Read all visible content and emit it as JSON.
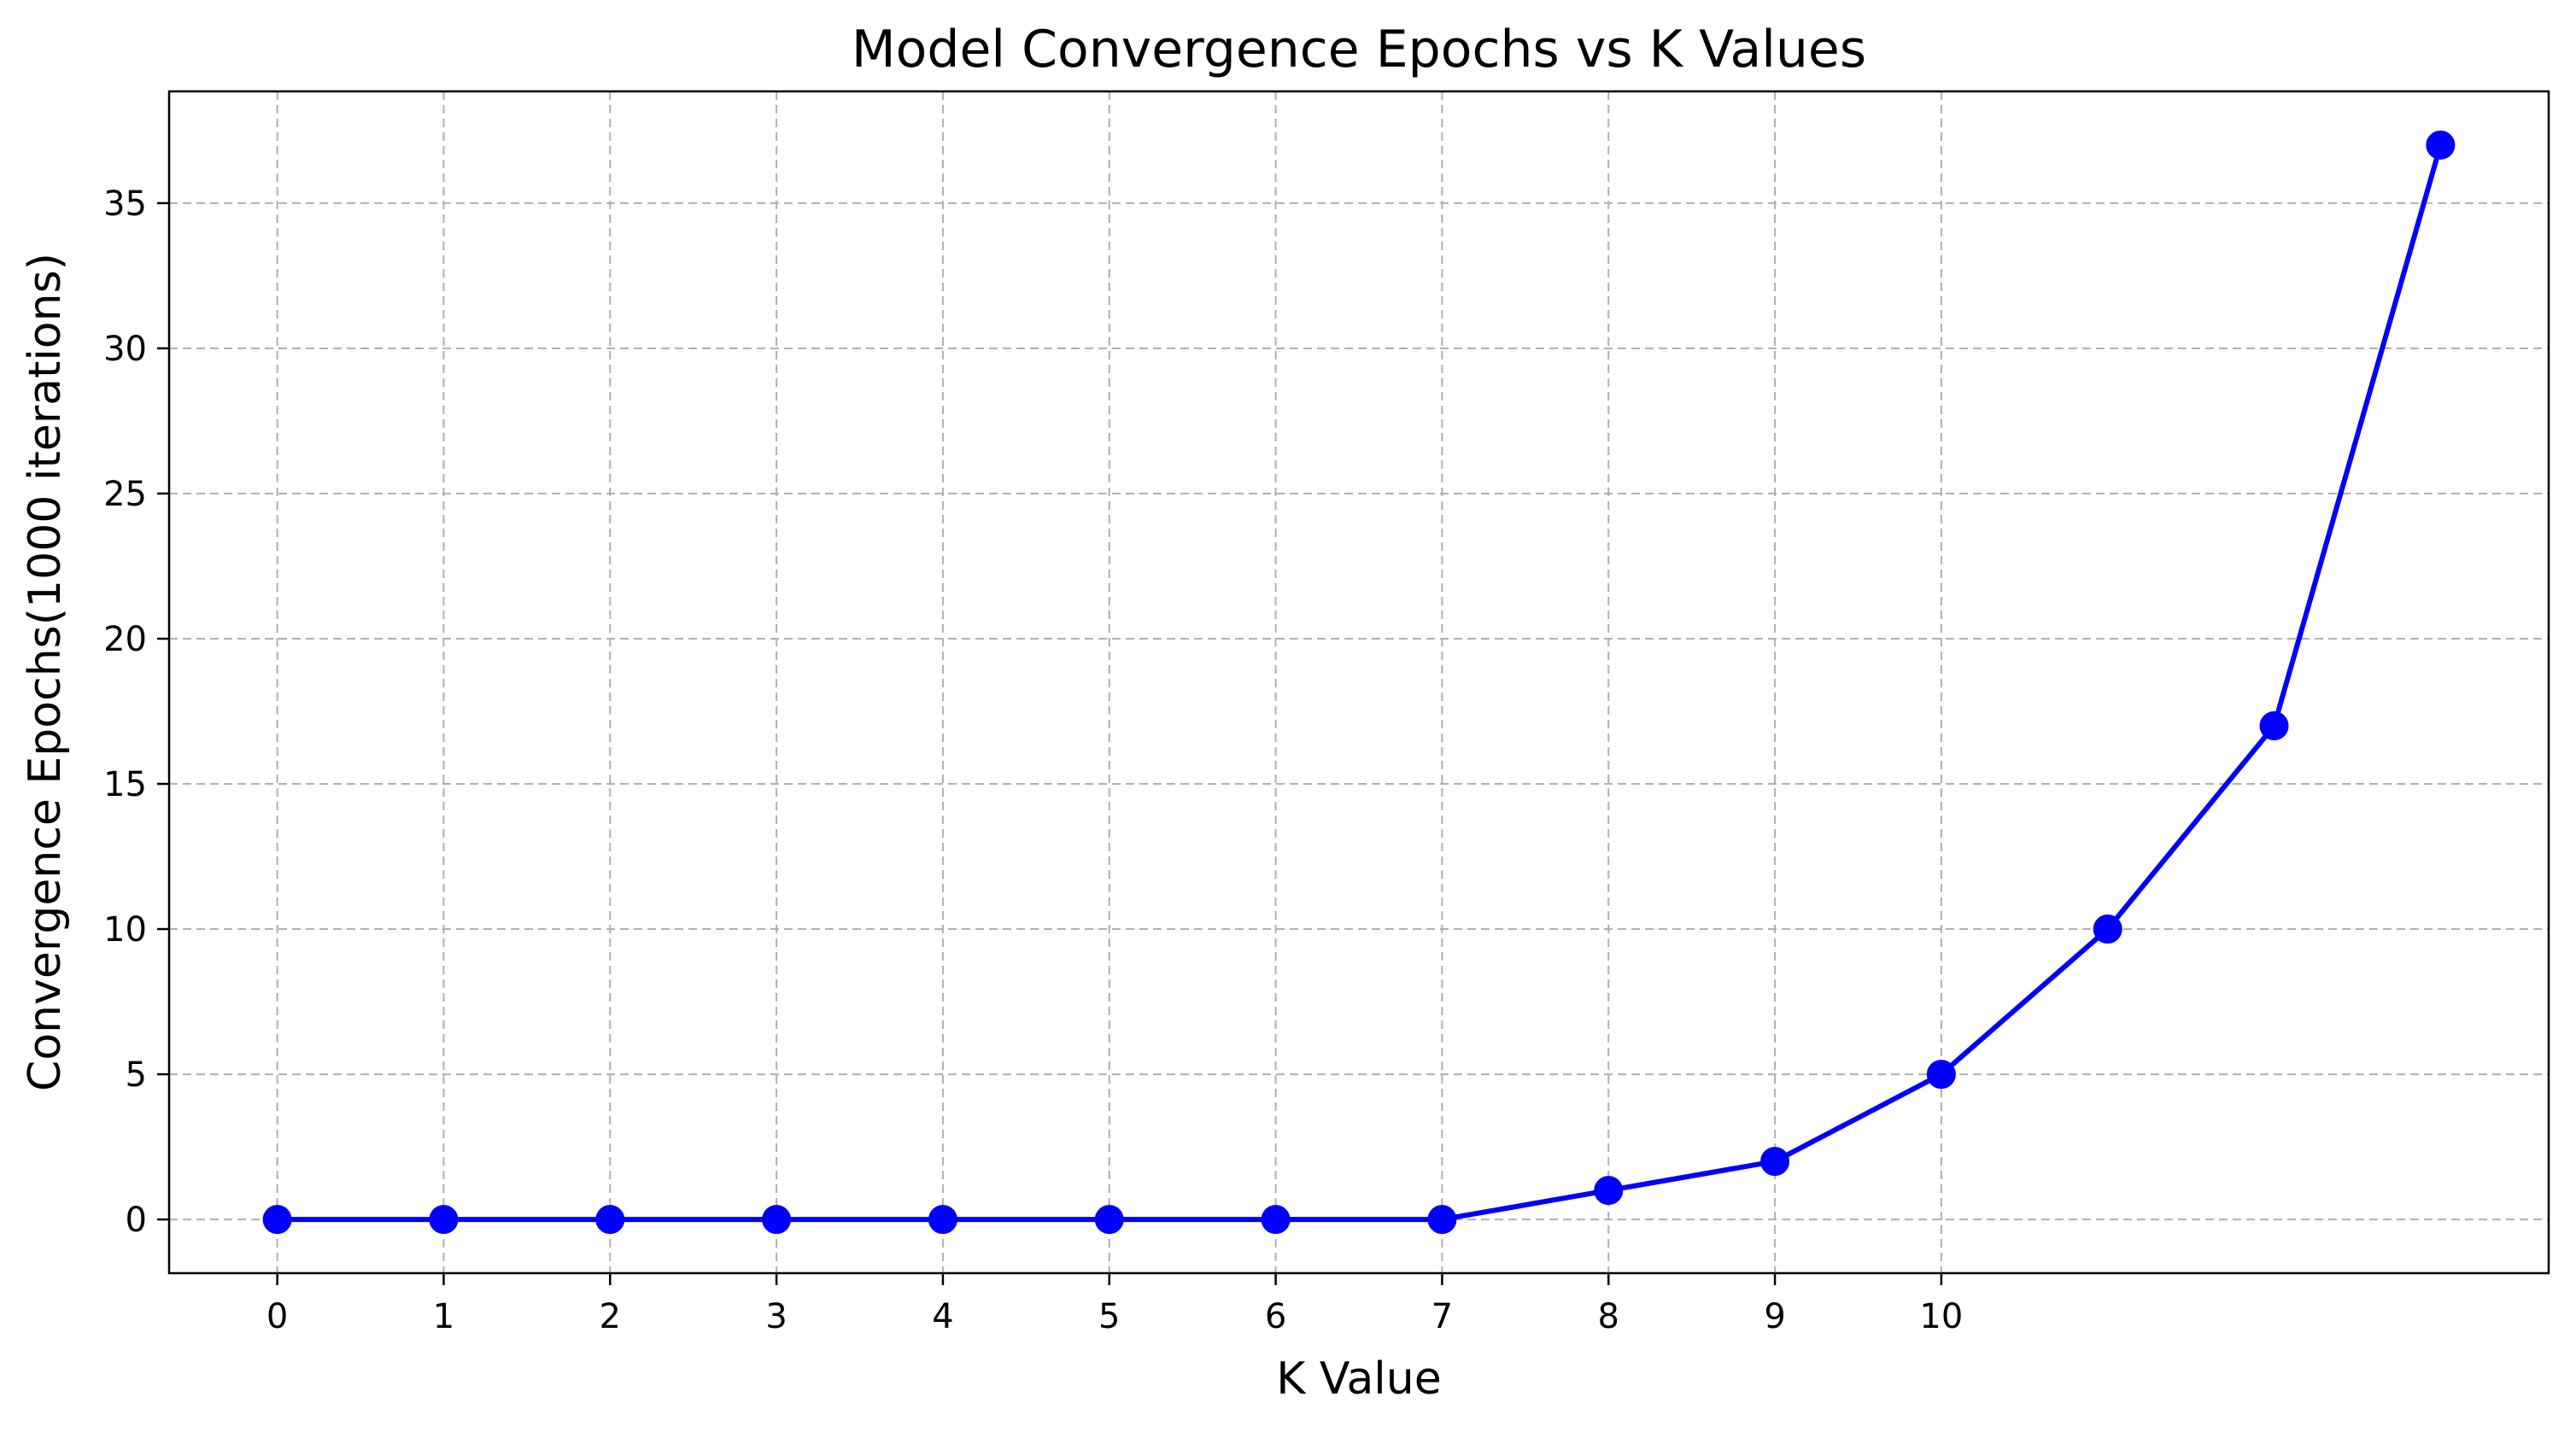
{
  "chart_data": {
    "type": "line",
    "title": "Model Convergence Epochs vs K Values",
    "xlabel": "K Value",
    "ylabel": "Convergence Epochs(1000 iterations)",
    "x": [
      0,
      1,
      2,
      3,
      4,
      5,
      6,
      7,
      8,
      9,
      10,
      11,
      12,
      13
    ],
    "series": [
      {
        "values": [
          0,
          0,
          0,
          0,
          0,
          0,
          0,
          0,
          1,
          2,
          5,
          10,
          17,
          37
        ],
        "color": "#0000ff",
        "marker": "circle"
      }
    ],
    "xticks": [
      0,
      1,
      2,
      3,
      4,
      5,
      6,
      7,
      8,
      9,
      10
    ],
    "yticks": [
      0,
      5,
      10,
      15,
      20,
      25,
      30,
      35
    ],
    "xlim": [
      -0.65,
      13.65
    ],
    "ylim": [
      -1.85,
      38.85
    ],
    "grid": true,
    "grid_style": "dashed",
    "grid_color": "#b0b0b0"
  }
}
